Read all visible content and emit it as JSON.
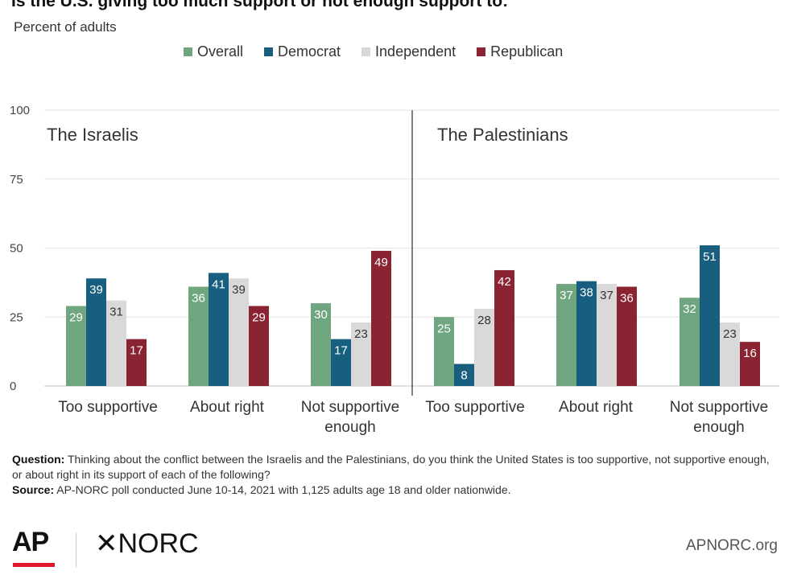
{
  "title": "Is the U.S. giving too much support or not enough support to:",
  "subtitle": "Percent of adults",
  "legend": [
    {
      "label": "Overall",
      "color": "#6fa57f"
    },
    {
      "label": "Democrat",
      "color": "#175e7f"
    },
    {
      "label": "Independent",
      "color": "#d9d9d9"
    },
    {
      "label": "Republican",
      "color": "#8a2332"
    }
  ],
  "chart_data": {
    "type": "bar",
    "ylim": [
      0,
      100
    ],
    "yticks": [
      0,
      25,
      50,
      75,
      100
    ],
    "grid": true,
    "legend_position": "top",
    "panels": [
      {
        "title": "The Israelis",
        "categories": [
          "Too supportive",
          "About right",
          "Not supportive enough"
        ],
        "series": [
          {
            "name": "Overall",
            "values": [
              29,
              36,
              30
            ]
          },
          {
            "name": "Democrat",
            "values": [
              39,
              41,
              17
            ]
          },
          {
            "name": "Independent",
            "values": [
              31,
              39,
              23
            ]
          },
          {
            "name": "Republican",
            "values": [
              17,
              29,
              49
            ]
          }
        ]
      },
      {
        "title": "The Palestinians",
        "categories": [
          "Too supportive",
          "About right",
          "Not supportive enough"
        ],
        "series": [
          {
            "name": "Overall",
            "values": [
              25,
              37,
              32
            ]
          },
          {
            "name": "Democrat",
            "values": [
              8,
              38,
              51
            ]
          },
          {
            "name": "Independent",
            "values": [
              28,
              37,
              23
            ]
          },
          {
            "name": "Republican",
            "values": [
              42,
              36,
              16
            ]
          }
        ]
      }
    ]
  },
  "footer": {
    "question_label": "Question:",
    "question_text": "Thinking about the conflict between the Israelis and the Palestinians, do you think the United States is too supportive, not supportive enough, or about right in its support of each of the following?",
    "source_label": "Source:",
    "source_text": "AP-NORC poll conducted June 10-14, 2021 with 1,125 adults age 18 and older nationwide."
  },
  "logos": {
    "ap": "AP",
    "norc": "✕NORC"
  },
  "site": "APNORC.org"
}
